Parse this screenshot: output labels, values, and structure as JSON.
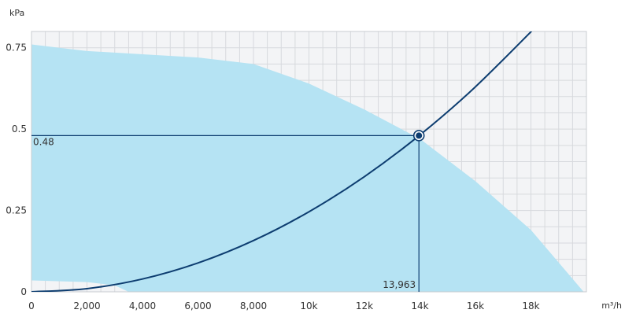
{
  "chart_data": {
    "type": "line",
    "x_unit": "m³/h",
    "y_unit": "kPa",
    "xlim": [
      0,
      20000
    ],
    "ylim": [
      0,
      0.8
    ],
    "x_ticks": [
      0,
      2000,
      4000,
      6000,
      8000,
      10000,
      12000,
      14000,
      16000,
      18000
    ],
    "x_tick_labels": [
      "0",
      "2,000",
      "4,000",
      "6,000",
      "8,000",
      "10k",
      "12k",
      "14k",
      "16k",
      "18k"
    ],
    "y_ticks": [
      0,
      0.25,
      0.5,
      0.75
    ],
    "y_tick_labels": [
      "0",
      "0.25",
      "0.5",
      "0.75"
    ],
    "grid": true,
    "operating_region": {
      "upper": [
        [
          0,
          0.76
        ],
        [
          1000,
          0.75
        ],
        [
          2000,
          0.74
        ],
        [
          4000,
          0.73
        ],
        [
          6000,
          0.72
        ],
        [
          8000,
          0.7
        ],
        [
          10000,
          0.64
        ],
        [
          12000,
          0.56
        ],
        [
          14000,
          0.47
        ],
        [
          16000,
          0.34
        ],
        [
          18000,
          0.19
        ],
        [
          19900,
          0.0
        ]
      ],
      "lower": [
        [
          0,
          0.035
        ],
        [
          2000,
          0.03
        ],
        [
          3000,
          0.02
        ],
        [
          3500,
          0.0
        ]
      ],
      "color": "#b5e3f3"
    },
    "system_curve": {
      "x": [
        0,
        2000,
        4000,
        6000,
        8000,
        10000,
        12000,
        14000,
        16000,
        18500
      ],
      "y": [
        0,
        0.0098,
        0.0394,
        0.0886,
        0.1575,
        0.246,
        0.354,
        0.482,
        0.63,
        0.842
      ],
      "color": "#0d3d70"
    },
    "operating_point": {
      "x": 13963,
      "y": 0.48,
      "x_label": "13,963",
      "y_label": "0.48"
    },
    "plot_background": "#f3f4f6",
    "grid_color": "#d7d9dd"
  }
}
